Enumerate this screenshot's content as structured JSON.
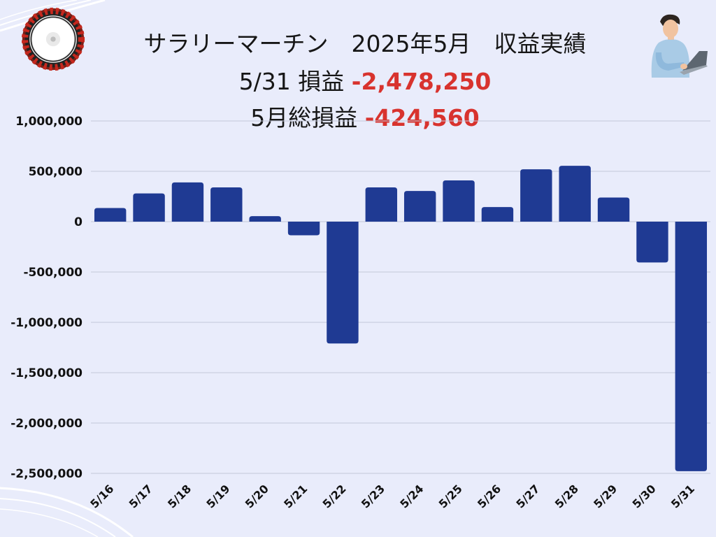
{
  "header": {
    "title": "サラリーマーチン　2025年5月　収益実績",
    "daily_label": "5/31 損益",
    "daily_value": "-2,478,250",
    "monthly_label": "5月総損益",
    "monthly_value": "-424,560"
  },
  "icons": [
    "roulette-wheel-icon",
    "person-with-laptop-icon"
  ],
  "colors": {
    "background": "#e9ecfb",
    "bar": "#1f3a93",
    "negative_text": "#d8332e",
    "grid": "#c3c7d8"
  },
  "chart_data": {
    "type": "bar",
    "categories": [
      "5/16",
      "5/17",
      "5/18",
      "5/19",
      "5/20",
      "5/21",
      "5/22",
      "5/23",
      "5/24",
      "5/25",
      "5/26",
      "5/27",
      "5/28",
      "5/29",
      "5/30",
      "5/31"
    ],
    "values": [
      135000,
      280000,
      390000,
      340000,
      55000,
      -135000,
      -1210000,
      340000,
      305000,
      410000,
      145000,
      520000,
      555000,
      240000,
      -405000,
      -2478250
    ],
    "yticks": [
      1000000,
      500000,
      0,
      -500000,
      -1000000,
      -1500000,
      -2000000,
      -2500000
    ],
    "ytick_labels": [
      "1,000,000",
      "500,000",
      "0",
      "-500,000",
      "-1,000,000",
      "-1,500,000",
      "-2,000,000",
      "-2,500,000"
    ],
    "ylim": [
      -2500000,
      1000000
    ],
    "grid": true,
    "legend": "none"
  }
}
